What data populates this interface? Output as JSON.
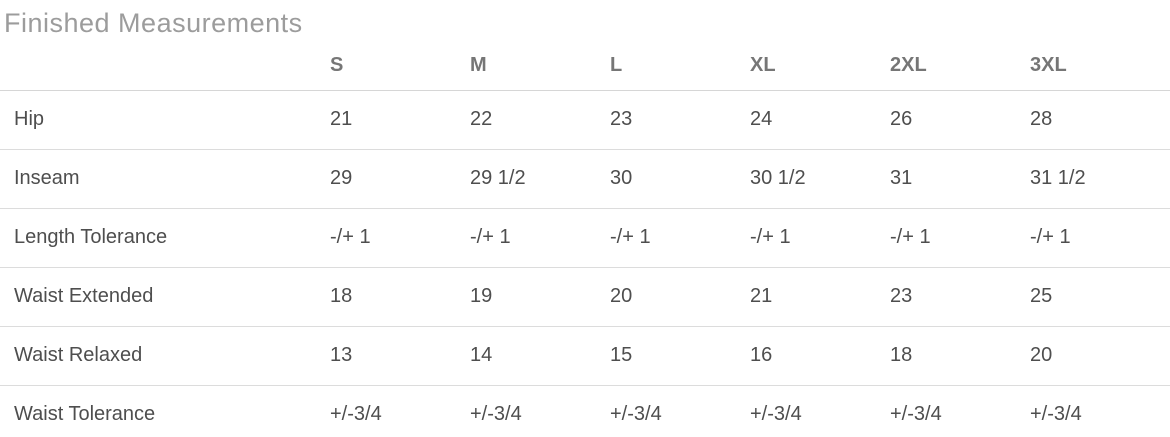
{
  "page": {
    "title": "Finished Measurements"
  },
  "colors": {
    "title_text": "#9c9c9c",
    "header_text": "#767676",
    "body_text": "#4e4e4e",
    "divider": "#dcdcdc"
  },
  "table": {
    "columns": [
      "S",
      "M",
      "L",
      "XL",
      "2XL",
      "3XL"
    ],
    "rows": [
      {
        "label": "Hip",
        "values": [
          "21",
          "22",
          "23",
          "24",
          "26",
          "28"
        ]
      },
      {
        "label": "Inseam",
        "values": [
          "29",
          "29 1/2",
          "30",
          "30 1/2",
          "31",
          "31 1/2"
        ]
      },
      {
        "label": "Length Tolerance",
        "values": [
          "-/+ 1",
          "-/+ 1",
          "-/+ 1",
          "-/+ 1",
          "-/+ 1",
          "-/+ 1"
        ]
      },
      {
        "label": "Waist Extended",
        "values": [
          "18",
          "19",
          "20",
          "21",
          "23",
          "25"
        ]
      },
      {
        "label": "Waist Relaxed",
        "values": [
          "13",
          "14",
          "15",
          "16",
          "18",
          "20"
        ]
      },
      {
        "label": "Waist Tolerance",
        "values": [
          "+/-3/4",
          "+/-3/4",
          "+/-3/4",
          "+/-3/4",
          "+/-3/4",
          "+/-3/4"
        ]
      }
    ]
  }
}
